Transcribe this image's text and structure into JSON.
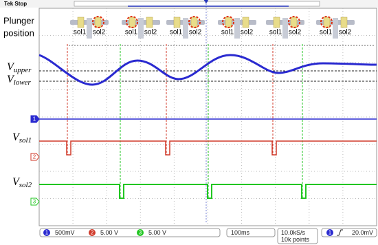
{
  "header": {
    "status": "Tek Stop"
  },
  "labels": {
    "plunger": [
      "Plunger",
      "position"
    ],
    "v_upper": {
      "symbol": "V",
      "subscript": "upper"
    },
    "v_lower": {
      "symbol": "V",
      "subscript": "lower"
    },
    "v_sol1": {
      "symbol": "V",
      "subscript": "sol1"
    },
    "v_sol2": {
      "symbol": "V",
      "subscript": "sol2"
    }
  },
  "icons": [
    [
      "sol1",
      "sol2"
    ],
    [
      "sol1",
      "sol2"
    ],
    [
      "sol1",
      "sol2"
    ],
    [
      "sol1",
      "sol2"
    ],
    [
      "sol1",
      "sol2"
    ],
    [
      "sol1",
      "sol2"
    ]
  ],
  "channels": [
    {
      "id": "1",
      "scale": "500mV"
    },
    {
      "id": "2",
      "scale": "5.00 V"
    },
    {
      "id": "3",
      "scale": "5.00 V"
    }
  ],
  "timebase": "100ms",
  "sampling": [
    "10.0kS/s",
    "10k points"
  ],
  "trigger": {
    "channel": "1",
    "level": "20.0mV"
  }
}
